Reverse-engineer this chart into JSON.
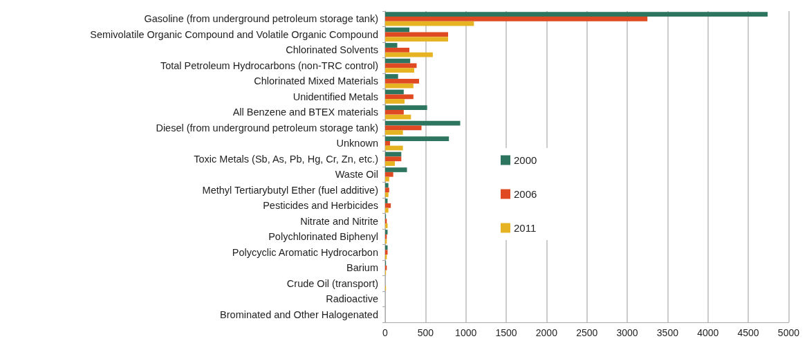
{
  "chart_data": {
    "type": "bar",
    "orientation": "horizontal",
    "categories": [
      "Gasoline (from underground petroleum storage tank)",
      "Semivolatile Organic Compound and Volatile Organic Compound",
      "Chlorinated Solvents",
      "Total Petroleum Hydrocarbons (non-TRC control)",
      "Chlorinated Mixed Materials",
      "Unidentified Metals",
      "All Benzene and BTEX materials",
      "Diesel (from underground petroleum storage tank)",
      "Unknown",
      "Toxic Metals (Sb, As, Pb, Hg, Cr, Zn, etc.)",
      "Waste Oil",
      "Methyl Tertiarybutyl Ether (fuel additive)",
      "Pesticides and Herbicides",
      "Nitrate and Nitrite",
      "Polychlorinated Biphenyl",
      "Polycyclic Aromatic Hydrocarbon",
      "Barium",
      "Crude Oil (transport)",
      "Radioactive",
      "Brominated and Other Halogenated"
    ],
    "series": [
      {
        "name": "2000",
        "color": "#2e7560",
        "values": [
          4740,
          300,
          150,
          310,
          160,
          230,
          520,
          930,
          790,
          200,
          270,
          40,
          30,
          10,
          30,
          30,
          10,
          0,
          0,
          0
        ]
      },
      {
        "name": "2006",
        "color": "#e04a22",
        "values": [
          3250,
          780,
          300,
          390,
          420,
          350,
          230,
          450,
          60,
          200,
          100,
          50,
          70,
          20,
          20,
          30,
          20,
          0,
          0,
          0
        ]
      },
      {
        "name": "2011",
        "color": "#e6b422",
        "values": [
          1100,
          780,
          590,
          360,
          350,
          240,
          320,
          220,
          220,
          120,
          50,
          40,
          40,
          30,
          20,
          20,
          10,
          10,
          0,
          0
        ]
      }
    ],
    "xlim": [
      0,
      5000
    ],
    "xticks": [
      0,
      500,
      1000,
      1500,
      2000,
      2500,
      3000,
      3500,
      4000,
      4500,
      5000
    ],
    "grid": "x",
    "legend": "left"
  }
}
